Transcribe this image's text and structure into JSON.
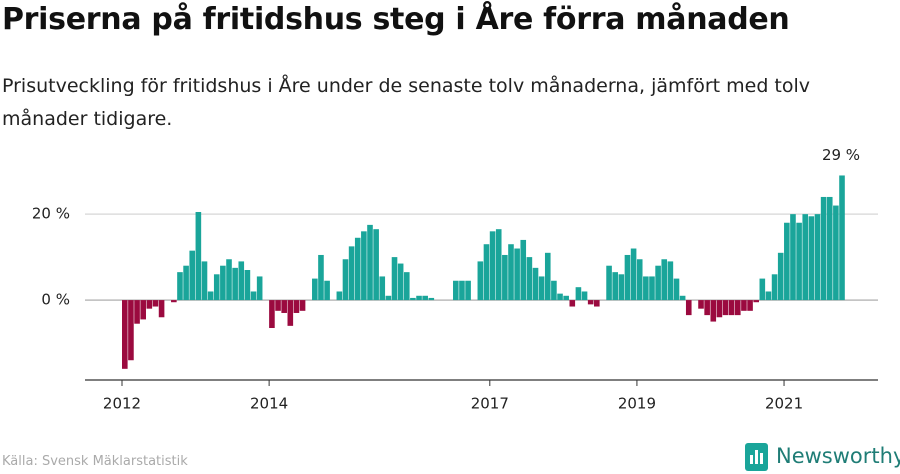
{
  "chart_data": {
    "type": "bar",
    "title": "Priserna på fritidshus steg i Åre förra månaden",
    "subtitle": "Prisutveckling för fritidshus i Åre under de senaste tolv månaderna, jämfört med tolv månader tidigare.",
    "categories": [
      "2012",
      null,
      null,
      null,
      null,
      null,
      null,
      null,
      null,
      null,
      null,
      null,
      null,
      null,
      null,
      null,
      null,
      null,
      null,
      null,
      null,
      null,
      null,
      null,
      "2014",
      null,
      null,
      null,
      null,
      null,
      null,
      null,
      null,
      null,
      null,
      null,
      null,
      null,
      null,
      null,
      null,
      null,
      null,
      null,
      null,
      null,
      null,
      null,
      null,
      null,
      null,
      null,
      null,
      null,
      null,
      null,
      null,
      null,
      null,
      null,
      "2017",
      null,
      null,
      null,
      null,
      null,
      null,
      null,
      null,
      null,
      null,
      null,
      null,
      null,
      null,
      null,
      null,
      null,
      null,
      null,
      null,
      null,
      null,
      null,
      "2019",
      null,
      null,
      null,
      null,
      null,
      null,
      null,
      null,
      null,
      null,
      null,
      null,
      null,
      null,
      null,
      null,
      null,
      null,
      null,
      null,
      null,
      null,
      null,
      "2021",
      null,
      null,
      null,
      null,
      null,
      null,
      null,
      null,
      null
    ],
    "values": [
      -16,
      -14,
      -5.5,
      -4.5,
      -2,
      -1.5,
      -4,
      0,
      -0.5,
      6.5,
      8,
      11.5,
      20.5,
      9,
      2,
      6,
      8,
      9.5,
      7.5,
      9,
      7,
      2,
      5.5,
      0,
      -6.5,
      -2.5,
      -3,
      -6,
      -3,
      -2.5,
      0,
      5,
      10.5,
      4.5,
      0,
      2,
      9.5,
      12.5,
      14.5,
      16,
      17.5,
      16.5,
      5.5,
      1,
      10,
      8.5,
      6.5,
      0.5,
      1,
      1,
      0.5,
      0,
      0,
      0,
      4.5,
      4.5,
      4.5,
      0,
      9,
      13,
      16,
      16.5,
      10.5,
      13,
      12,
      14,
      10,
      7.5,
      5.5,
      11,
      4.5,
      1.5,
      1,
      -1.5,
      3,
      2,
      -1,
      -1.5,
      0,
      8,
      6.5,
      6,
      10.5,
      12,
      9.5,
      5.5,
      5.5,
      8,
      9.5,
      9,
      5,
      1,
      -3.5,
      0,
      -2,
      -3.5,
      -5,
      -4,
      -3.5,
      -3.5,
      -3.5,
      -2.5,
      -2.5,
      -0.5,
      5,
      2,
      6,
      11,
      18,
      20,
      18,
      20,
      19.5,
      20,
      24,
      24,
      22,
      29
    ],
    "value_labels": {
      "117": "29 %"
    },
    "color": "#1aa59a",
    "negative_color": "#9b0a3f",
    "ylim": [
      -18.6,
      32.6
    ],
    "yticks": [
      {
        "value": 0,
        "label": "0 %"
      },
      {
        "value": 20,
        "label": "20 %"
      }
    ],
    "grid": true,
    "source": "Källa: Svensk Mäklarstatistik",
    "brand": "Newsworthy"
  }
}
